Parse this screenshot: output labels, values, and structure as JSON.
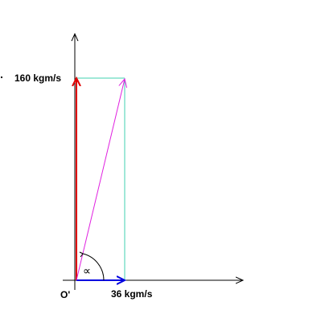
{
  "labels": {
    "vertical": "160 kgm/s",
    "horizontal": "36 kgm/s",
    "origin": "O'",
    "angle": "∝"
  }
}
